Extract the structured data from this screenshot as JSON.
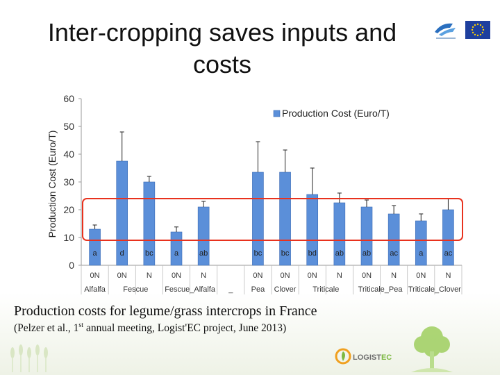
{
  "slide": {
    "title_line1": "Inter-cropping saves inputs and",
    "title_line2": "costs"
  },
  "caption": {
    "main": "Production costs for legume/grass intercrops in France",
    "ref_prefix": "(Pelzer et al., 1",
    "ref_sup": "st",
    "ref_suffix": " annual meeting, Logist'EC project, June 2013)"
  },
  "logos": {
    "fp7": "fp7-logo",
    "eu": "eu-flag",
    "logistec_prefix": "LOGIST",
    "logistec_suffix": "EC"
  },
  "colors": {
    "bar": "#5b8fd9",
    "bar_edge": "#3a6bb5",
    "highlight_box": "#e8321e",
    "axis": "#999999"
  },
  "chart_data": {
    "type": "bar",
    "ylabel": "Production Cost (Euro/T)",
    "ylim": [
      0,
      60
    ],
    "yticks": [
      0,
      10,
      20,
      30,
      40,
      50,
      60
    ],
    "legend": "Production Cost (Euro/T)",
    "legend_position": "top-right",
    "bars": [
      {
        "treat": "0N",
        "group": "Alfalfa",
        "value": 13,
        "error": 1.5,
        "letter": "a"
      },
      {
        "treat": "0N",
        "group": "Fescue",
        "value": 37.5,
        "error": 10.5,
        "letter": "d"
      },
      {
        "treat": "N",
        "group": "Fescue",
        "value": 30,
        "error": 2,
        "letter": "bc"
      },
      {
        "treat": "0N",
        "group": "Fescue_Alfalfa",
        "value": 12,
        "error": 1.8,
        "letter": "a"
      },
      {
        "treat": "N",
        "group": "Fescue_Alfalfa",
        "value": 21,
        "error": 2,
        "letter": "ab"
      },
      {
        "treat": "",
        "group": "_",
        "value": null,
        "error": null,
        "letter": ""
      },
      {
        "treat": "0N",
        "group": "Pea",
        "value": 33.5,
        "error": 11,
        "letter": "bc"
      },
      {
        "treat": "0N",
        "group": "Clover",
        "value": 33.5,
        "error": 8,
        "letter": "bc"
      },
      {
        "treat": "0N",
        "group": "Triticale",
        "value": 25.5,
        "error": 9.5,
        "letter": "bd"
      },
      {
        "treat": "N",
        "group": "Triticale",
        "value": 22.5,
        "error": 3.5,
        "letter": "ab"
      },
      {
        "treat": "0N",
        "group": "Triticale_Pea",
        "value": 21,
        "error": 2.5,
        "letter": "ab"
      },
      {
        "treat": "N",
        "group": "Triticale_Pea",
        "value": 18.5,
        "error": 3,
        "letter": "ac"
      },
      {
        "treat": "0N",
        "group": "Triticale_Clover",
        "value": 16,
        "error": 2.5,
        "letter": "a"
      },
      {
        "treat": "N",
        "group": "Triticale_Clover",
        "value": 20,
        "error": 4,
        "letter": "ac"
      }
    ],
    "groups": [
      {
        "label": "Alfalfa",
        "span": [
          0,
          0
        ]
      },
      {
        "label": "Fescue",
        "span": [
          1,
          2
        ]
      },
      {
        "label": "Fescue_Alfalfa",
        "span": [
          3,
          4
        ]
      },
      {
        "label": "_",
        "span": [
          5,
          5
        ]
      },
      {
        "label": "Pea",
        "span": [
          6,
          6
        ]
      },
      {
        "label": "Clover",
        "span": [
          7,
          7
        ]
      },
      {
        "label": "Triticale",
        "span": [
          8,
          9
        ]
      },
      {
        "label": "Triticale_Pea",
        "span": [
          10,
          11
        ]
      },
      {
        "label": "Triticale_Clover",
        "span": [
          12,
          13
        ]
      }
    ],
    "highlight_range": [
      9,
      24
    ]
  }
}
